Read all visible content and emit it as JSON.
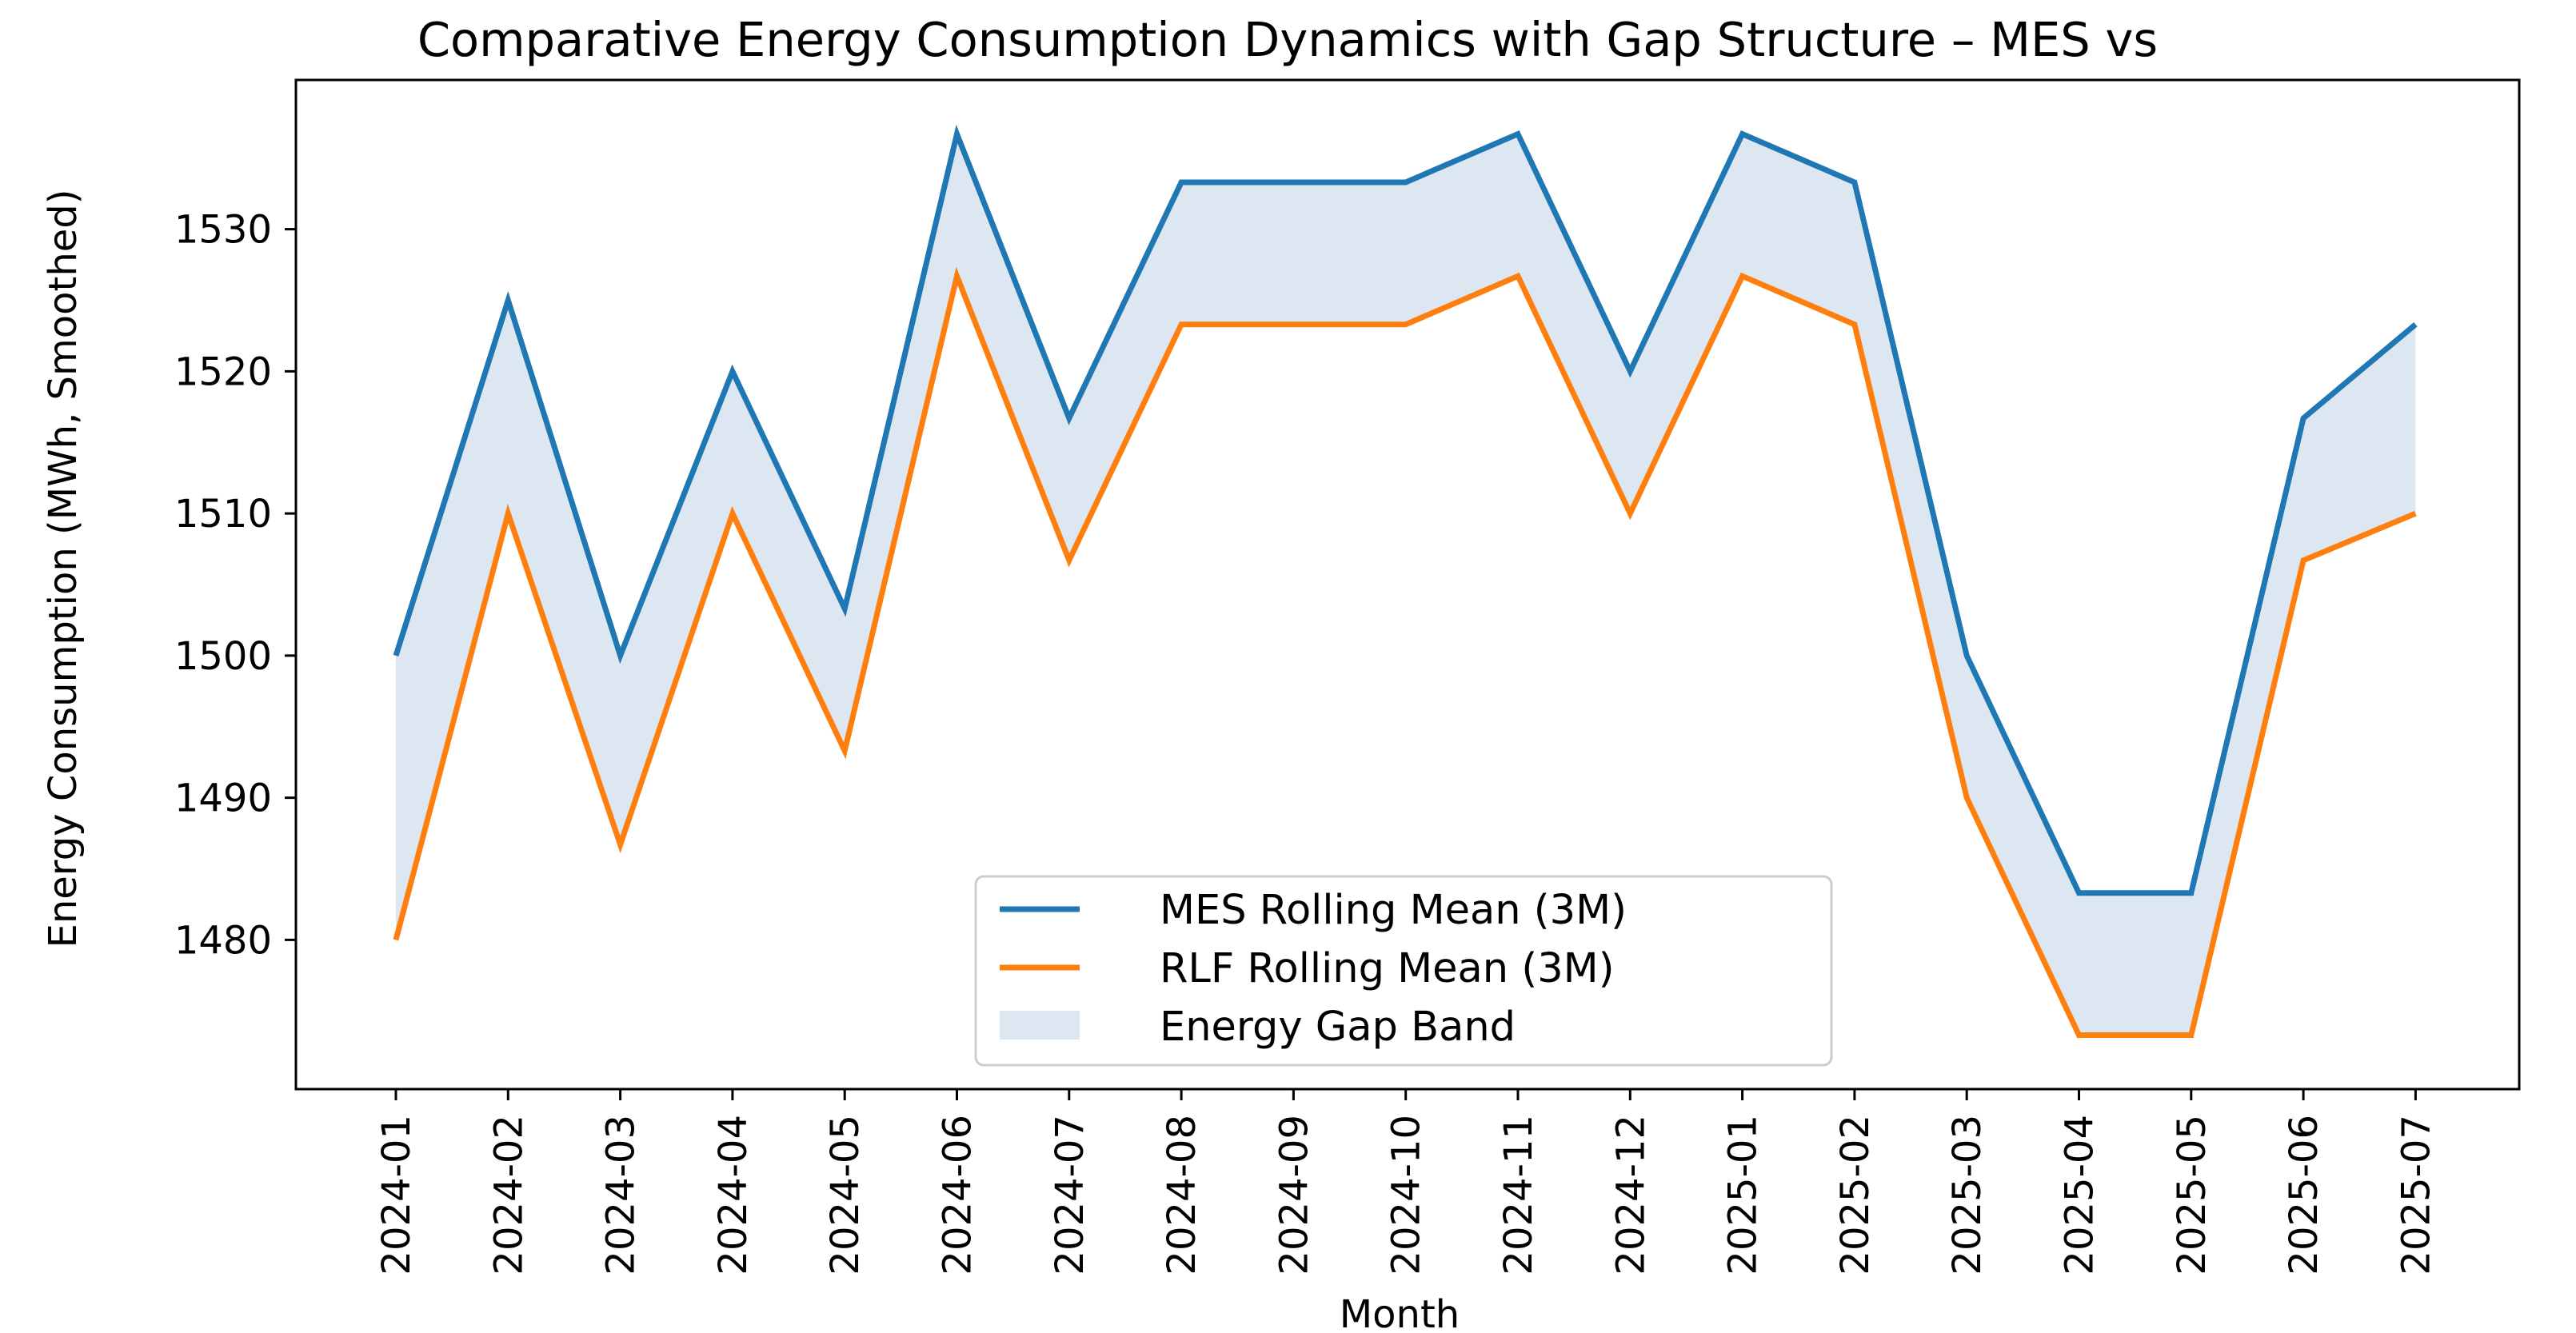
{
  "chart_data": {
    "type": "line",
    "title": "Comparative Energy Consumption Dynamics with Gap Structure – MES vs",
    "xlabel": "Month",
    "ylabel": "Energy Consumption (MWh, Smoothed)",
    "categories": [
      "2024-01",
      "2024-02",
      "2024-03",
      "2024-04",
      "2024-05",
      "2024-06",
      "2024-07",
      "2024-08",
      "2024-09",
      "2024-10",
      "2024-11",
      "2024-12",
      "2025-01",
      "2025-02",
      "2025-03",
      "2025-04",
      "2025-05",
      "2025-06",
      "2025-07"
    ],
    "series": [
      {
        "name": "MES Rolling Mean (3M)",
        "color": "#1f77b4",
        "values": [
          1500,
          1525,
          1500,
          1520,
          1503.3,
          1536.7,
          1516.7,
          1533.3,
          1533.3,
          1533.3,
          1536.7,
          1520,
          1536.7,
          1533.3,
          1500,
          1483.3,
          1483.3,
          1516.7,
          1523.3
        ]
      },
      {
        "name": "RLF Rolling Mean (3M)",
        "color": "#ff7f0e",
        "values": [
          1480,
          1510,
          1486.7,
          1510,
          1493.3,
          1526.7,
          1506.7,
          1523.3,
          1523.3,
          1523.3,
          1526.7,
          1510,
          1526.7,
          1523.3,
          1490,
          1473.3,
          1473.3,
          1506.7,
          1510
        ]
      }
    ],
    "band": {
      "name": "Energy Gap Band",
      "color": "#dce7f2"
    },
    "yticks": [
      1480,
      1490,
      1500,
      1510,
      1520,
      1530
    ],
    "ylim": [
      1469.5,
      1540.5
    ],
    "grid": false,
    "legend_position": "lower center"
  }
}
